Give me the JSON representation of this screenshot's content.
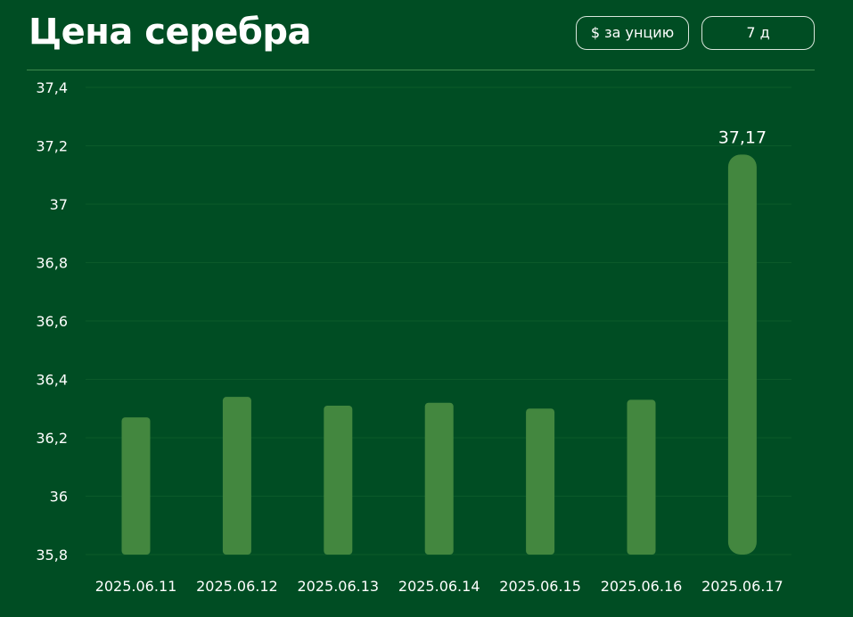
{
  "header": {
    "title": "Цена серебра",
    "unit_button": "$ за унцию",
    "period_button": "7 д"
  },
  "colors": {
    "background": "#004d23",
    "bar": "#43873f",
    "grid": "#0b5a2a",
    "divider": "#3f8a4e"
  },
  "chart_data": {
    "type": "bar",
    "title": "",
    "xlabel": "",
    "ylabel": "",
    "categories": [
      "2025.06.11",
      "2025.06.12",
      "2025.06.13",
      "2025.06.14",
      "2025.06.15",
      "2025.06.16",
      "2025.06.17"
    ],
    "values": [
      36.27,
      36.34,
      36.31,
      36.32,
      36.3,
      36.33,
      37.17
    ],
    "ylim": [
      35.8,
      37.4
    ],
    "yticks": [
      35.8,
      36,
      36.2,
      36.4,
      36.6,
      36.8,
      37,
      37.2,
      37.4
    ],
    "ytick_labels": [
      "35,8",
      "36",
      "36,2",
      "36,4",
      "36,6",
      "36,8",
      "37",
      "37,2",
      "37,4"
    ],
    "data_labels": [
      {
        "index": 6,
        "text": "37,17"
      }
    ],
    "grid": true,
    "legend": "none"
  }
}
